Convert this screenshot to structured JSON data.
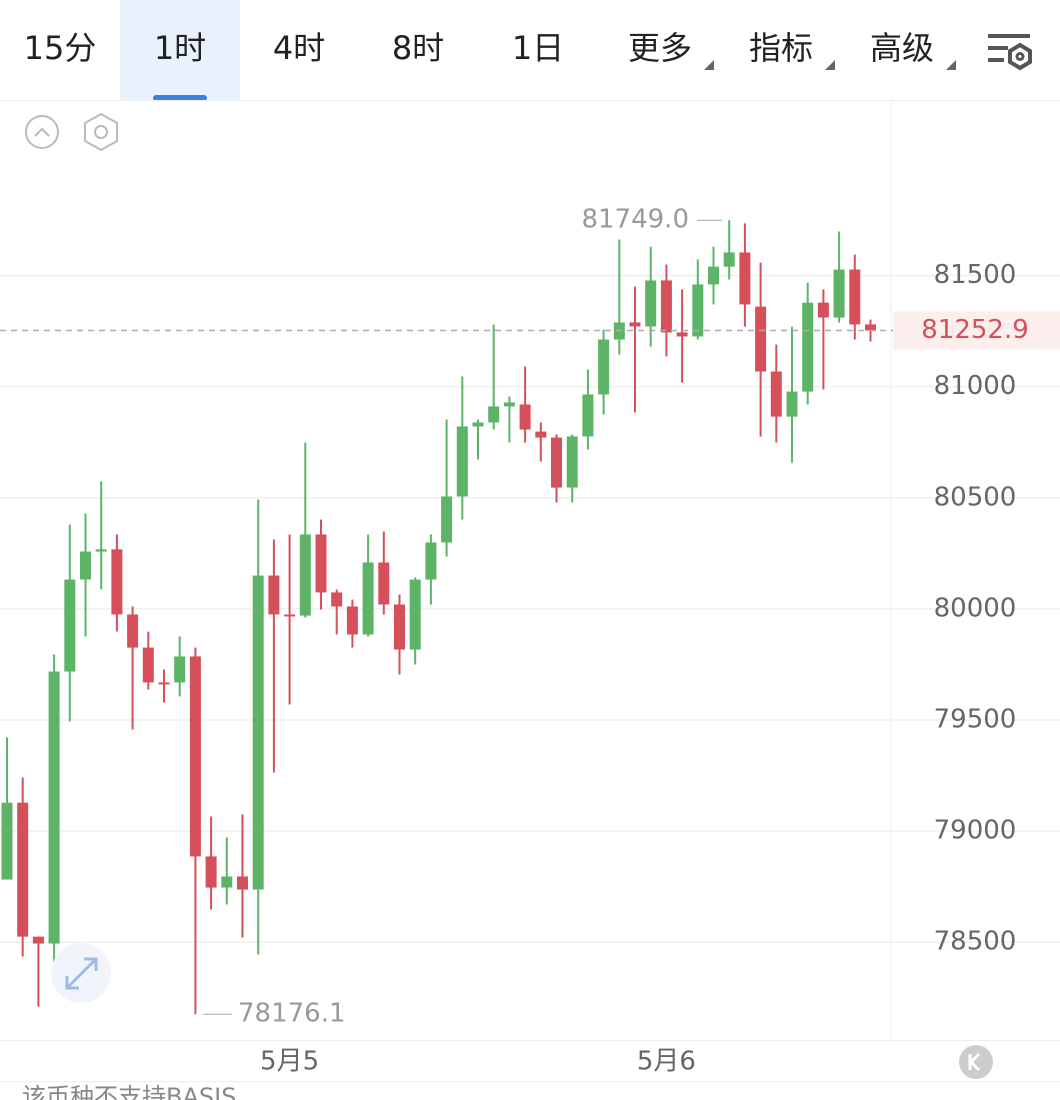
{
  "tabs": {
    "items": [
      "15分",
      "1时",
      "4时",
      "8时",
      "1日"
    ],
    "selected": 1
  },
  "menus": [
    "更多",
    "指标",
    "高级"
  ],
  "chart_data": {
    "type": "candlestick",
    "x": [
      null,
      null,
      null,
      null,
      null,
      null,
      null,
      null,
      null,
      null,
      null,
      null,
      null,
      null,
      null,
      null,
      null,
      null,
      "5月5",
      null,
      null,
      null,
      null,
      null,
      null,
      null,
      null,
      null,
      null,
      null,
      null,
      null,
      null,
      null,
      null,
      null,
      null,
      null,
      null,
      null,
      null,
      null,
      "5月6",
      null,
      null,
      null,
      null,
      null,
      null,
      null,
      null,
      null,
      null,
      null,
      null,
      null
    ],
    "open": [
      78782,
      79128,
      78525,
      78494,
      79718,
      80132,
      80258,
      80268,
      79975,
      79826,
      79669,
      79669,
      79786,
      78886,
      78746,
      78796,
      78737,
      80150,
      79975,
      79970,
      80335,
      80074,
      80011,
      79885,
      80209,
      80020,
      79817,
      80132,
      80299,
      80506,
      80821,
      80839,
      80911,
      80920,
      80798,
      80771,
      80546,
      80776,
      80965,
      81212,
      81289,
      81271,
      81478,
      81244,
      81226,
      81460,
      81540,
      81604,
      81360,
      81068,
      80865,
      80978,
      81378,
      81311,
      81527,
      81280
    ],
    "high": [
      79421,
      79241,
      78525,
      79795,
      80380,
      80429,
      80573,
      80335,
      80011,
      79898,
      79727,
      79876,
      79826,
      79066,
      78971,
      79075,
      80492,
      80312,
      80335,
      80749,
      80402,
      80087,
      80042,
      80335,
      80348,
      80065,
      80141,
      80335,
      80852,
      81046,
      80852,
      81280,
      80956,
      81091,
      80839,
      80785,
      80785,
      81077,
      81257,
      81662,
      81450,
      81630,
      81550,
      81437,
      81572,
      81630,
      81749,
      81735,
      81558,
      81190,
      81270,
      81468,
      81437,
      81698,
      81594,
      81302
    ],
    "low": [
      78782,
      78436,
      78210,
      78377,
      79493,
      79876,
      80087,
      79898,
      79457,
      79637,
      79579,
      79606,
      78176.1,
      78647,
      78670,
      78521,
      78445,
      79264,
      79570,
      79961,
      79997,
      79885,
      79826,
      79876,
      79975,
      79705,
      79750,
      80020,
      80236,
      80402,
      80672,
      80807,
      80749,
      80749,
      80663,
      80479,
      80479,
      80717,
      80875,
      81145,
      80884,
      81180,
      81136,
      81019,
      81212,
      81370,
      81482,
      81270,
      80775,
      80749,
      80658,
      80920,
      80987,
      81289,
      81212,
      81203
    ],
    "close": [
      79128,
      78525,
      78494,
      79718,
      80132,
      80258,
      80268,
      79975,
      79826,
      79669,
      79665,
      79786,
      78886,
      78746,
      78796,
      78737,
      80150,
      79975,
      79970,
      80335,
      80074,
      80011,
      79885,
      80209,
      80020,
      79817,
      80132,
      80299,
      80506,
      80821,
      80839,
      80911,
      80929,
      80807,
      80771,
      80546,
      80776,
      80965,
      81212,
      81289,
      81271,
      81478,
      81244,
      81226,
      81460,
      81540,
      81604,
      81370,
      81068,
      80865,
      80978,
      81378,
      81311,
      81527,
      81280,
      81252.9
    ],
    "up_color": "#5db467",
    "down_color": "#d6505b",
    "ylim": [
      78060,
      82290
    ],
    "yticks": [
      78500,
      79000,
      79500,
      80000,
      80500,
      81000,
      81500
    ],
    "grid": true,
    "max_marker": {
      "value": 81749,
      "label": "81749.0"
    },
    "min_marker": {
      "value": 78176.1,
      "label": "78176.1"
    },
    "last_price": {
      "value": 81252.9,
      "label": "81252.9"
    }
  },
  "footer": "该币种不支持BASIS"
}
